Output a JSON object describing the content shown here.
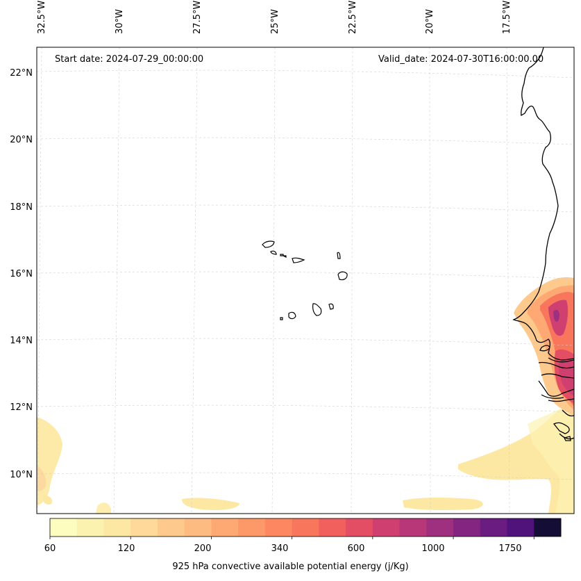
{
  "header": {
    "start_date": "Start date: 2024-07-29_00:00:00",
    "valid_date": "Valid_date: 2024-07-30T16:00:00.00"
  },
  "axes": {
    "longitudes": [
      "32.5°W",
      "30°W",
      "27.5°W",
      "25°W",
      "22.5°W",
      "20°W",
      "17.5°W"
    ],
    "latitudes": [
      "22°N",
      "20°N",
      "18°N",
      "16°N",
      "14°N",
      "12°N",
      "10°N"
    ]
  },
  "colorbar": {
    "title": "925 hPa convective available potential energy (j/Kg)",
    "ticks": [
      "60",
      "120",
      "200",
      "340",
      "600",
      "1000",
      "1750"
    ],
    "colors": [
      "#fcfdbf",
      "#fcf2b0",
      "#fde8a3",
      "#fed99a",
      "#fec98d",
      "#febb81",
      "#fea973",
      "#fd9869",
      "#fc8761",
      "#f8765c",
      "#f1605d",
      "#e34e65",
      "#cf4070",
      "#b73779",
      "#9f2f7f",
      "#842681",
      "#6a1c81",
      "#50127b",
      "#140e36"
    ]
  },
  "map": {
    "region": "Cabo Verde and West African coast",
    "field": "925 hPa CAPE"
  }
}
